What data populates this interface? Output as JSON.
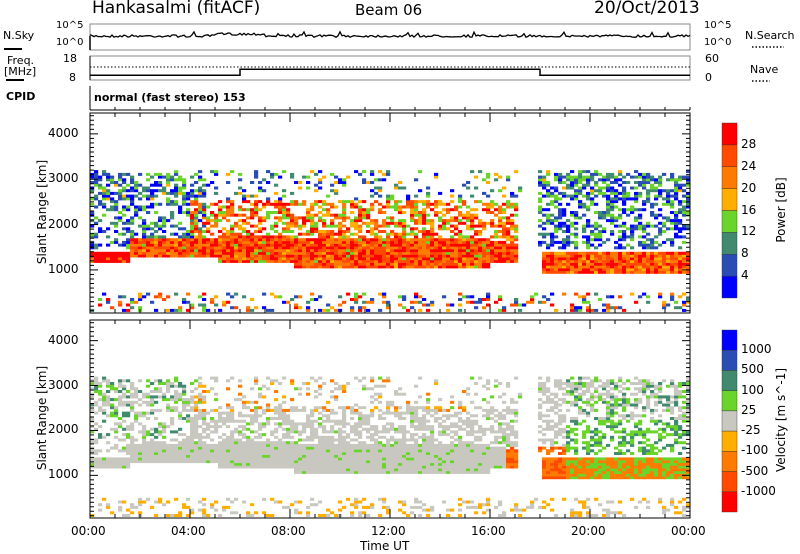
{
  "header": {
    "station": "Hankasalmi (fitACF)",
    "beam": "Beam 06",
    "date": "20/Oct/2013"
  },
  "nsky_panel": {
    "left_label": "N.Sky",
    "right_label": "N.Search",
    "left_ticks": [
      "10^5",
      "10^0"
    ],
    "right_ticks": [
      "10^5",
      "10^0"
    ]
  },
  "freq_panel": {
    "left_label_1": "Freq.",
    "left_label_2": "[MHz]",
    "right_label": "Nave",
    "left_ticks": [
      "18",
      "8"
    ],
    "right_ticks": [
      "60",
      "0"
    ],
    "freq_steps": [
      {
        "from": 0,
        "to": 6,
        "mhz": 10
      },
      {
        "from": 6,
        "to": 18,
        "mhz": 12.5
      },
      {
        "from": 18,
        "to": 24,
        "mhz": 10
      }
    ]
  },
  "cpid": {
    "label": "CPID",
    "value": "normal (fast stereo) 153"
  },
  "chart_data": [
    {
      "type": "heatmap",
      "title": "Power",
      "xlabel": "Time UT",
      "ylabel": "Slant Range [km]",
      "xlim": [
        0,
        24
      ],
      "ylim": [
        50,
        4460
      ],
      "x_ticks": [
        "00:00",
        "04:00",
        "08:00",
        "12:00",
        "16:00",
        "20:00",
        "00:00"
      ],
      "y_ticks": [
        "1000",
        "2000",
        "3000",
        "4000"
      ],
      "colorbar": {
        "label": "Power [dB]",
        "ticks": [
          "4",
          "8",
          "12",
          "16",
          "20",
          "24",
          "28"
        ],
        "colors": [
          "#0000ff",
          "#2a4db5",
          "#418a70",
          "#6bd42b",
          "#ffae00",
          "#ff7a00",
          "#ff4a00",
          "#ff0000"
        ]
      }
    },
    {
      "type": "heatmap",
      "title": "Velocity",
      "xlabel": "Time UT",
      "ylabel": "Slant Range [km]",
      "xlim": [
        0,
        24
      ],
      "ylim": [
        50,
        4460
      ],
      "x_ticks": [
        "00:00",
        "04:00",
        "08:00",
        "12:00",
        "16:00",
        "20:00",
        "00:00"
      ],
      "y_ticks": [
        "1000",
        "2000",
        "3000",
        "4000"
      ],
      "colorbar": {
        "label": "Velocity [m s^-1]",
        "ticks": [
          "1000",
          "500",
          "100",
          "25",
          "-25",
          "-100",
          "-500",
          "-1000"
        ],
        "colors": [
          "#0000ff",
          "#2a4db5",
          "#418a70",
          "#6bd42b",
          "#c8c8c0",
          "#ffae00",
          "#ff7a00",
          "#ff4a00",
          "#ff0000"
        ]
      }
    }
  ]
}
